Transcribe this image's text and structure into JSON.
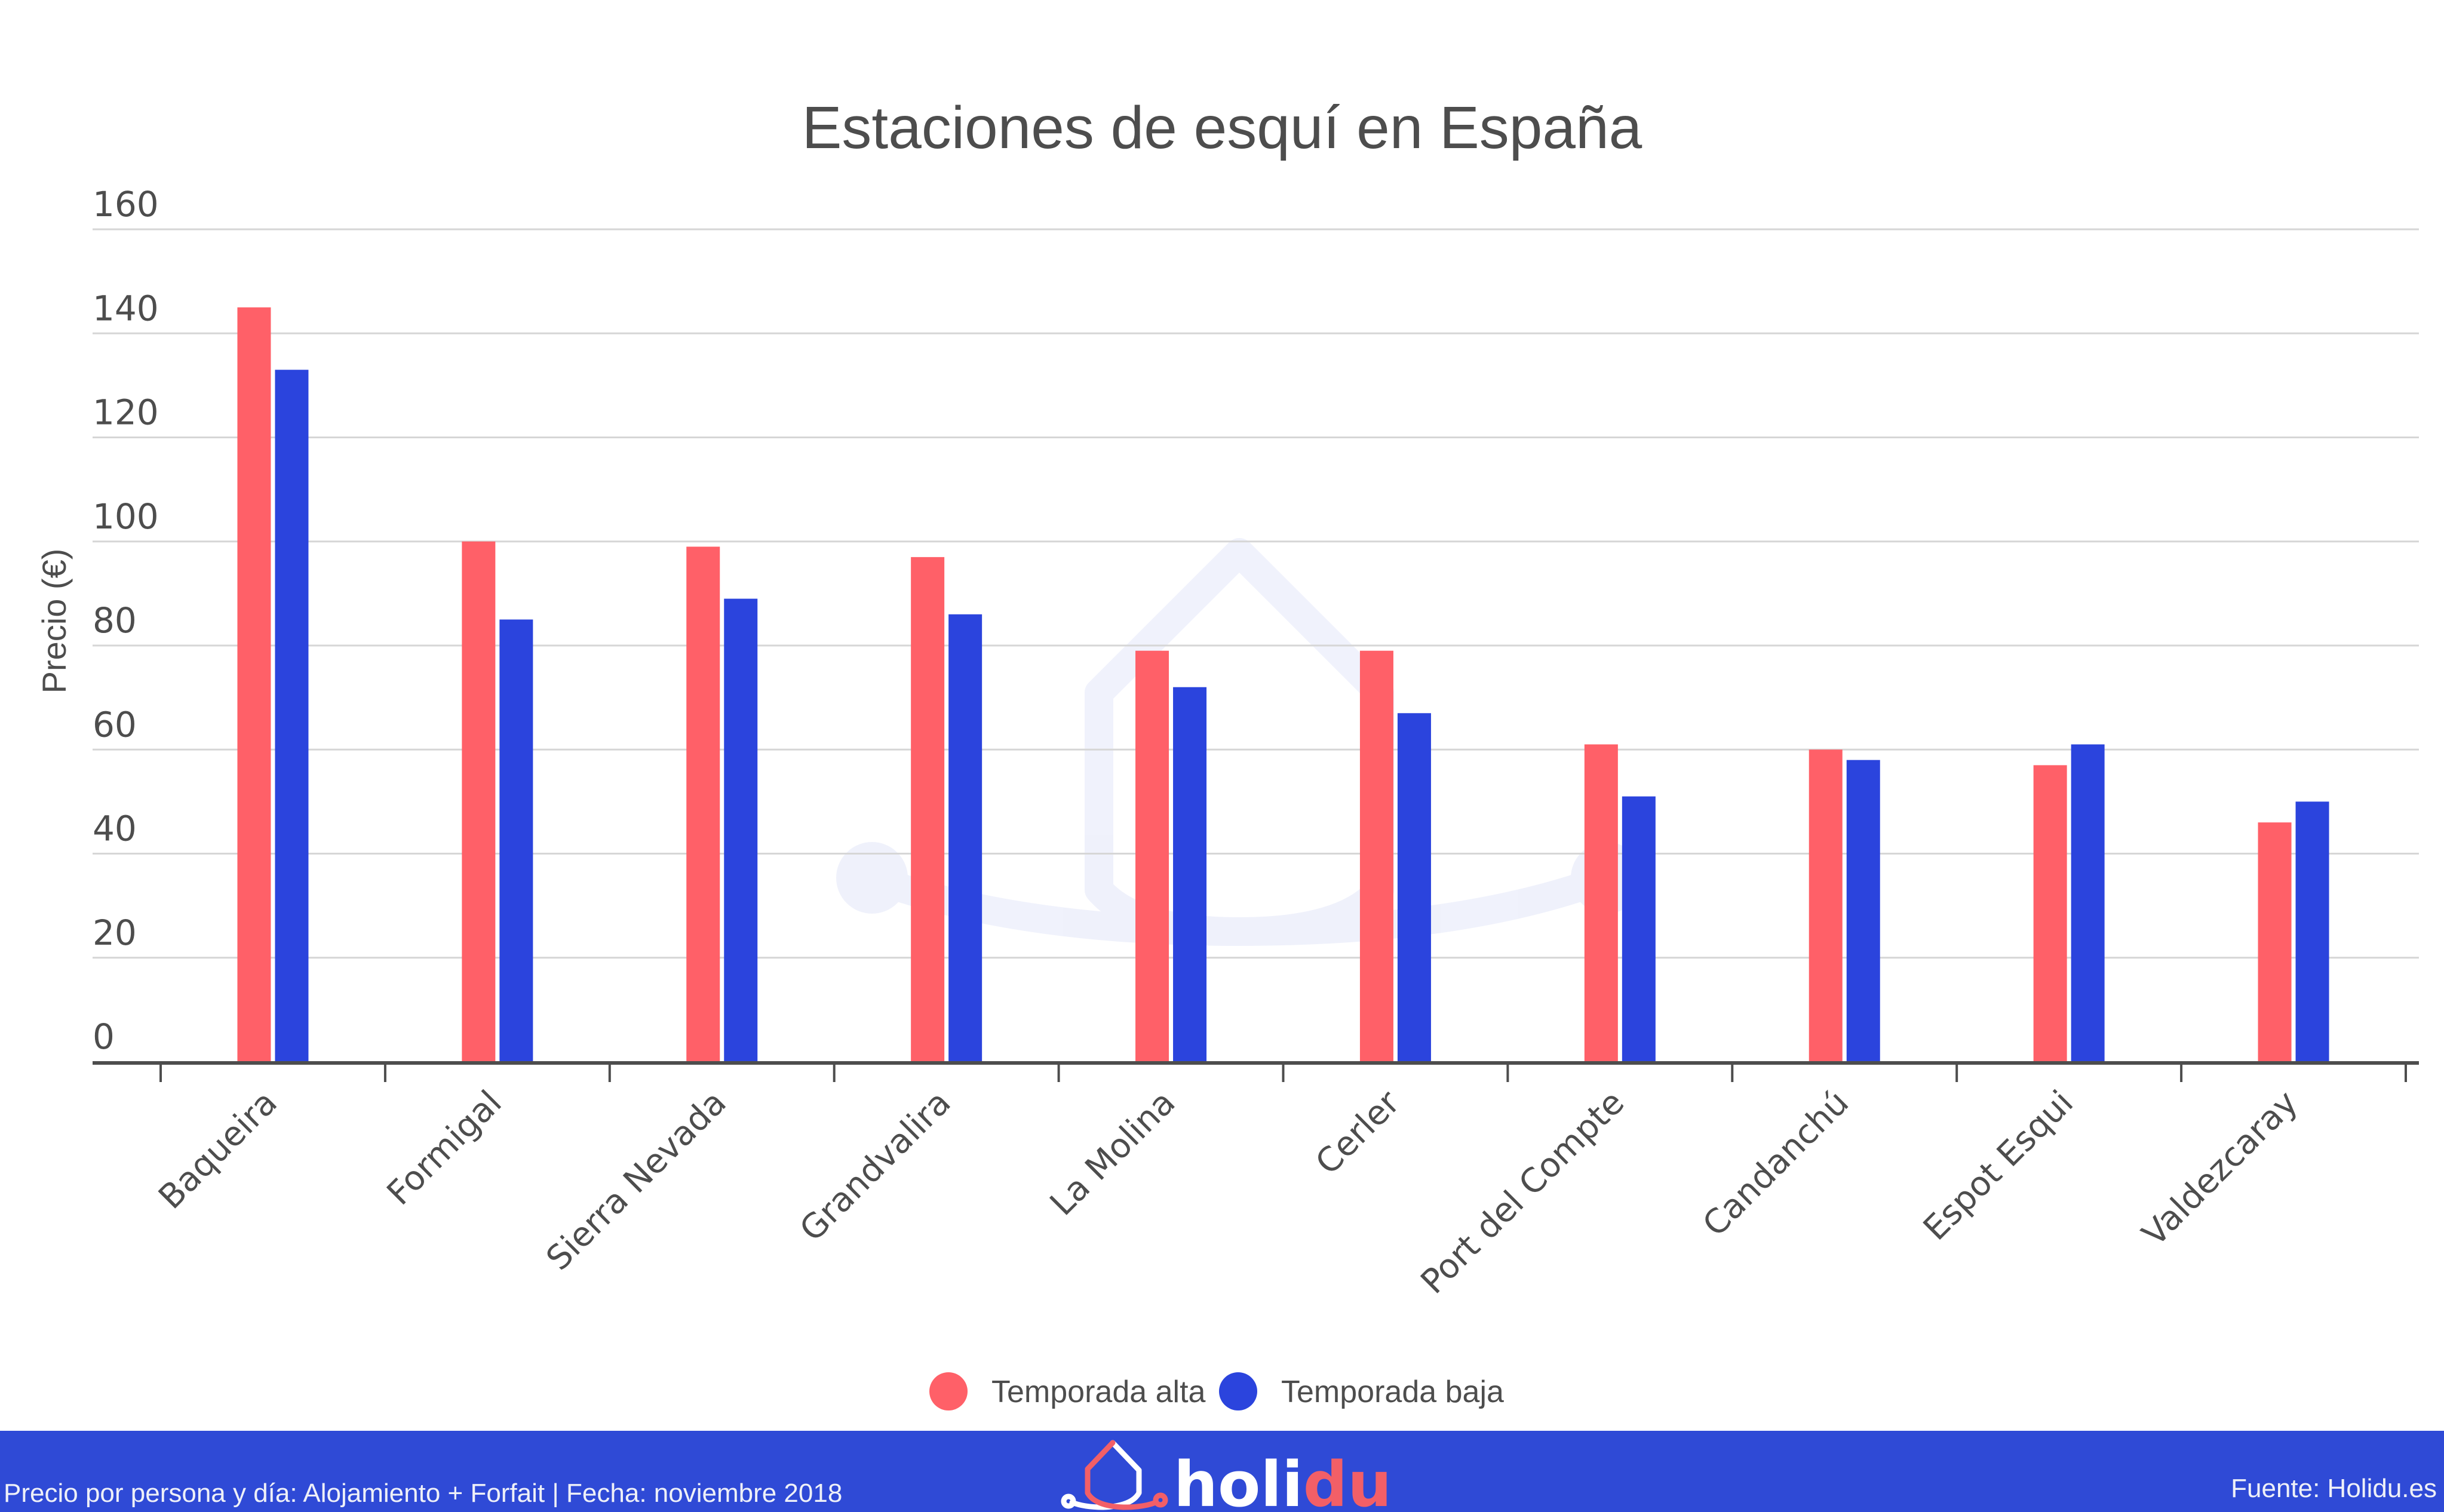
{
  "chart_data": {
    "type": "bar",
    "title": "Estaciones de esquí en España",
    "xlabel": "",
    "ylabel": "Precio (€)",
    "ylim": [
      0,
      160
    ],
    "yticks": [
      0,
      20,
      40,
      60,
      80,
      100,
      120,
      140,
      160
    ],
    "grid": true,
    "legend_position": "bottom-center",
    "categories": [
      "Baqueira",
      "Formigal",
      "Sierra Nevada",
      "Grandvalira",
      "La Molina",
      "Cerler",
      "Port del Compte",
      "Candanchú",
      "Espot Esqui",
      "Valdezcaray"
    ],
    "series": [
      {
        "name": "Temporada alta",
        "color": "#ff6068",
        "values": [
          145,
          100,
          99,
          97,
          79,
          79,
          61,
          60,
          57,
          46
        ]
      },
      {
        "name": "Temporada baja",
        "color": "#2b44dd",
        "values": [
          133,
          85,
          89,
          86,
          72,
          67,
          51,
          58,
          61,
          50
        ]
      }
    ]
  },
  "footer": {
    "note": "Precio por persona y día: Alojamiento + Forfait | Fecha: noviembre 2018",
    "source": "Fuente: Holidu.es",
    "logo_part1": "holi",
    "logo_part2": "du",
    "background_color": "#2f4ad6",
    "logo_accent_color": "#f25f67"
  },
  "watermark": "holidu-house-icon"
}
